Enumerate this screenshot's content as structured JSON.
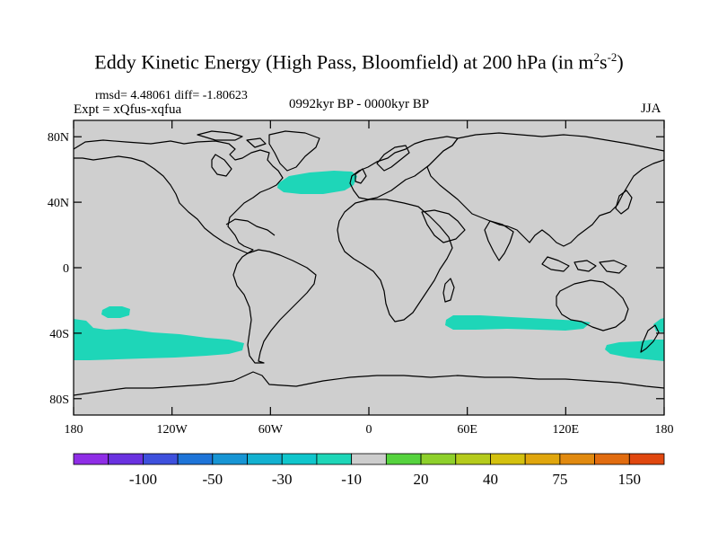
{
  "header": {
    "title_main": "Eddy Kinetic Energy (High Pass, Bloomfield) at 200 hPa (in m",
    "title_sup1": "2",
    "title_mid": "s",
    "title_sup2": "-2",
    "title_end": ")",
    "stats": "rmsd= 4.48061 diff= -1.80623",
    "experiment": "Expt = xQfus-xqfua",
    "period": "0992kyr BP - 0000kyr BP",
    "season": "JJA"
  },
  "axes": {
    "lat_labels": [
      {
        "value": 80,
        "text": "80N"
      },
      {
        "value": 40,
        "text": "40N"
      },
      {
        "value": 0,
        "text": "0"
      },
      {
        "value": -40,
        "text": "40S"
      },
      {
        "value": -80,
        "text": "80S"
      }
    ],
    "lon_labels": [
      {
        "value": -180,
        "text": "180"
      },
      {
        "value": -120,
        "text": "120W"
      },
      {
        "value": -60,
        "text": "60W"
      },
      {
        "value": 0,
        "text": "0"
      },
      {
        "value": 60,
        "text": "60E"
      },
      {
        "value": 120,
        "text": "120E"
      },
      {
        "value": 180,
        "text": "180"
      }
    ]
  },
  "colorbar": {
    "colors": [
      "#8f2ee6",
      "#6a32e0",
      "#3e50dd",
      "#1e74d8",
      "#1795d4",
      "#13b1d0",
      "#10c6cc",
      "#1ed6b8",
      "#cdcdcd",
      "#56d33e",
      "#8ed02b",
      "#b5cb1c",
      "#d4c10f",
      "#e0a60d",
      "#e18a10",
      "#e16c10",
      "#e0470f"
    ],
    "labels": [
      {
        "after_index": 1,
        "text": "-100"
      },
      {
        "after_index": 3,
        "text": "-50"
      },
      {
        "after_index": 5,
        "text": "-30"
      },
      {
        "after_index": 7,
        "text": "-10"
      },
      {
        "after_index": 9,
        "text": "20"
      },
      {
        "after_index": 11,
        "text": "40"
      },
      {
        "after_index": 13,
        "text": "75"
      },
      {
        "after_index": 15,
        "text": "150"
      }
    ]
  },
  "map_colors": {
    "background": "#cfcfcf",
    "anomaly_fill": "#1ed6b8",
    "coastline": "#000000"
  }
}
